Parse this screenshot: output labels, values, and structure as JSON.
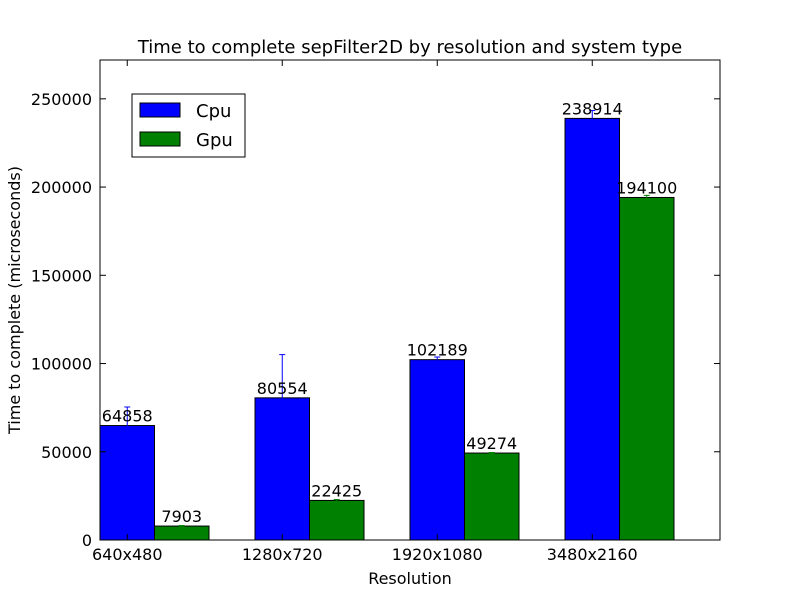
{
  "chart_data": {
    "type": "bar",
    "title": "Time to complete sepFilter2D by resolution and system type",
    "xlabel": "Resolution",
    "ylabel": "Time to complete (microseconds)",
    "categories": [
      "640x480",
      "1280x720",
      "1920x1080",
      "3480x2160"
    ],
    "series": [
      {
        "name": "Cpu",
        "color": "#0000ff",
        "values": [
          64858,
          80554,
          102189,
          238914
        ],
        "error": [
          10500,
          24500,
          1500,
          4500
        ]
      },
      {
        "name": "Gpu",
        "color": "#008000",
        "values": [
          7903,
          22425,
          49274,
          194100
        ],
        "error": [
          300,
          500,
          300,
          1200
        ]
      }
    ],
    "ylim": [
      0,
      272000
    ],
    "yticks": [
      0,
      50000,
      100000,
      150000,
      200000,
      250000
    ],
    "ytick_labels": [
      "0",
      "50000",
      "100000",
      "150000",
      "200000",
      "250000"
    ],
    "grid": false,
    "legend_position": "top-left"
  }
}
